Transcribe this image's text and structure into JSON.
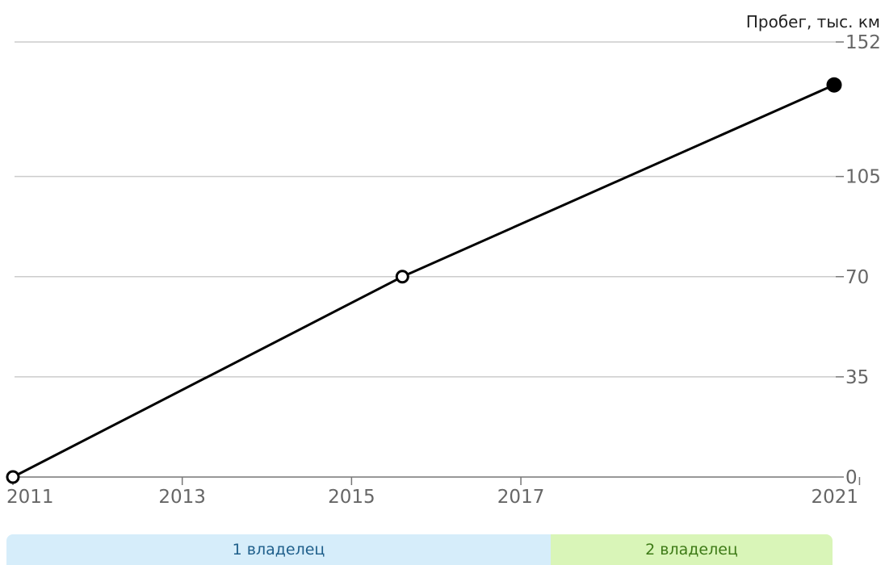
{
  "chart_data": {
    "type": "line",
    "title": "",
    "ylabel": "Пробег, тыс. км",
    "xlabel": "",
    "x_ticks": [
      "2011",
      "2013",
      "2015",
      "2017",
      "2021"
    ],
    "y_ticks": [
      "0",
      "35",
      "70",
      "105",
      "152"
    ],
    "xlim": [
      2011,
      2020.7
    ],
    "ylim": [
      0,
      152
    ],
    "grid": true,
    "y_axis_side": "right",
    "series": [
      {
        "points": [
          {
            "x": 2011.0,
            "y": 0,
            "marker": "open"
          },
          {
            "x": 2015.6,
            "y": 70,
            "marker": "open"
          },
          {
            "x": 2020.7,
            "y": 137,
            "marker": "filled"
          }
        ],
        "color": "#000000"
      }
    ]
  },
  "owners": [
    {
      "label": "1 владелец",
      "color": "#d6edfa",
      "text_color": "#1f5f8b"
    },
    {
      "label": "2 владелец",
      "color": "#d9f5b8",
      "text_color": "#3d7a16"
    }
  ]
}
